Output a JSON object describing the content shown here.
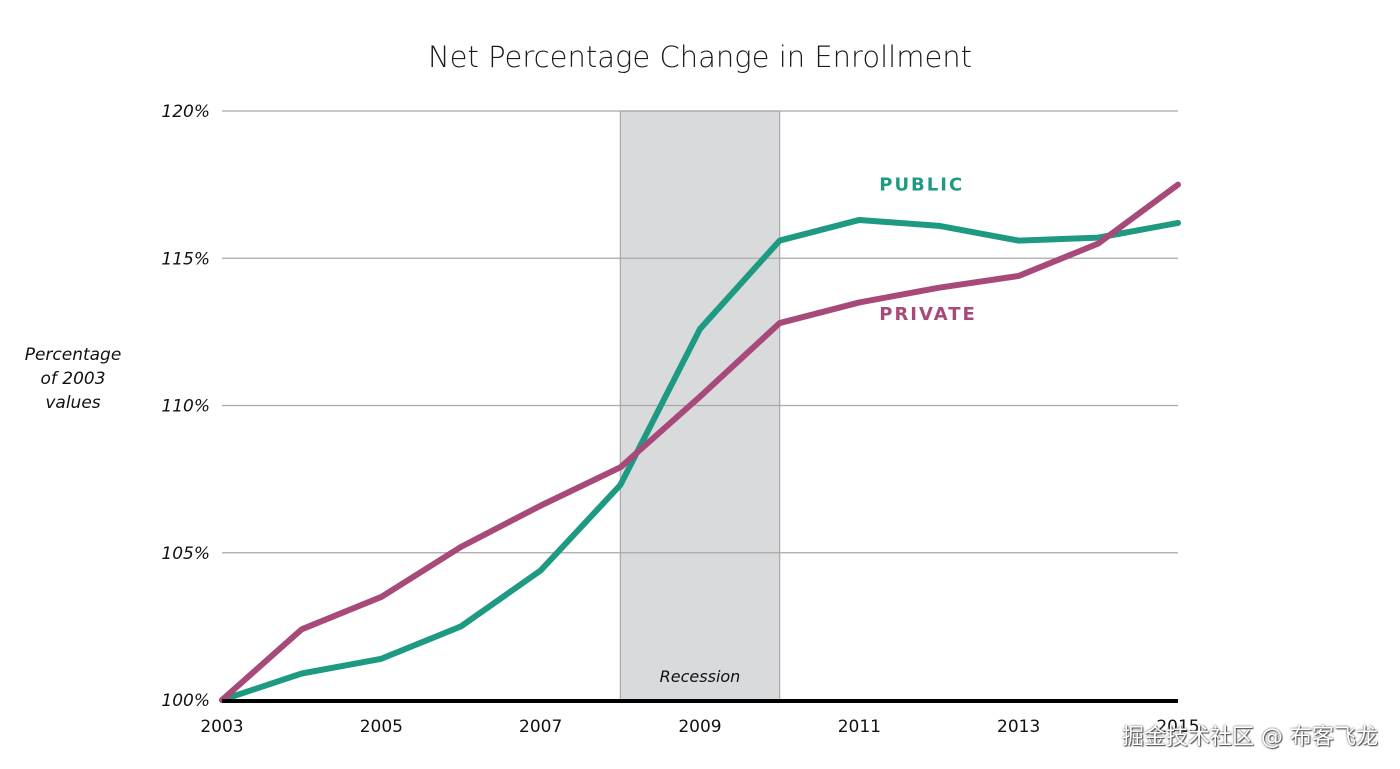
{
  "chart_data": {
    "type": "line",
    "title": "Net Percentage Change in Enrollment",
    "xlabel": "",
    "ylabel": [
      "Percentage",
      "of 2003",
      "values"
    ],
    "x": [
      2003,
      2004,
      2005,
      2006,
      2007,
      2008,
      2009,
      2010,
      2011,
      2012,
      2013,
      2014,
      2015
    ],
    "xticks": [
      "2003",
      "2005",
      "2007",
      "2009",
      "2011",
      "2013",
      "2015"
    ],
    "xtick_values": [
      2003,
      2005,
      2007,
      2009,
      2011,
      2013,
      2015
    ],
    "yticks": [
      "100%",
      "105%",
      "110%",
      "115%",
      "120%"
    ],
    "ytick_values": [
      100,
      105,
      110,
      115,
      120
    ],
    "xlim": [
      2003,
      2015
    ],
    "ylim": [
      100,
      120
    ],
    "grid": "horizontal",
    "series": [
      {
        "name": "PUBLIC",
        "color": "#1f9a82",
        "values": [
          100,
          100.9,
          101.4,
          102.5,
          104.4,
          107.3,
          112.6,
          115.6,
          116.3,
          116.1,
          115.6,
          115.7,
          116.2
        ],
        "label_position": {
          "x": 2011.25,
          "y": 117.3
        }
      },
      {
        "name": "PRIVATE",
        "color": "#a84a79",
        "values": [
          100,
          102.4,
          103.5,
          105.2,
          106.6,
          107.9,
          110.3,
          112.8,
          113.5,
          114.0,
          114.4,
          115.5,
          117.5
        ],
        "label_position": {
          "x": 2011.25,
          "y": 112.9
        }
      }
    ],
    "annotations": [
      {
        "type": "shaded-region",
        "label": "Recession",
        "x_start": 2008,
        "x_end": 2010,
        "color": "#d9dadc"
      }
    ]
  },
  "watermark": "掘金技术社区 @ 布客飞龙"
}
